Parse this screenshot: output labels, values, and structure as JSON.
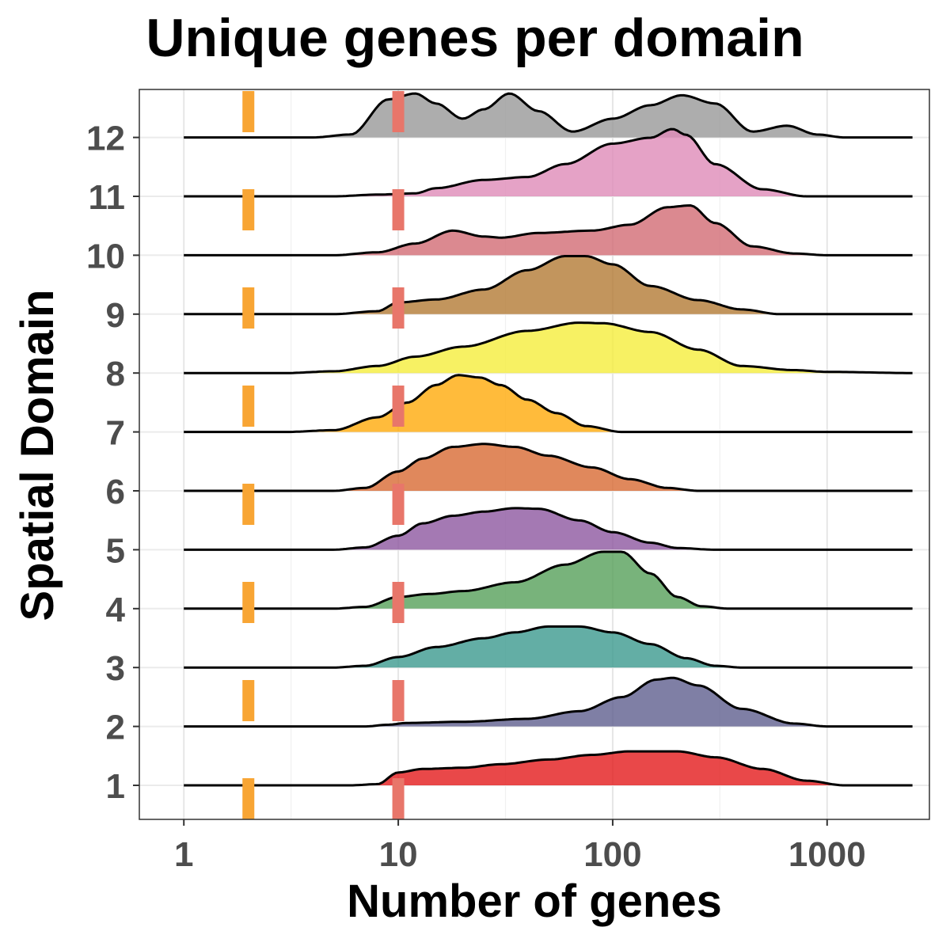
{
  "chart_data": {
    "type": "ridgeline",
    "title": "Unique genes per domain",
    "xlabel": "Number of genes",
    "ylabel": "Spatial Domain",
    "x_scale": "log10",
    "xlim": [
      0.62,
      3000
    ],
    "x_ticks": [
      1,
      10,
      100,
      1000
    ],
    "x_tick_labels": [
      "1",
      "10",
      "100",
      "1000"
    ],
    "grid": true,
    "reference_lines": [
      {
        "x": 2,
        "color": "#F8A534",
        "style": "dashed"
      },
      {
        "x": 10,
        "color": "#E8766A",
        "style": "dashed"
      }
    ],
    "series": [
      {
        "name": "1",
        "color": "#E41A1C",
        "density": [
          [
            1,
            0
          ],
          [
            6,
            0
          ],
          [
            8,
            0.02
          ],
          [
            10,
            0.22
          ],
          [
            13,
            0.28
          ],
          [
            20,
            0.3
          ],
          [
            30,
            0.36
          ],
          [
            50,
            0.44
          ],
          [
            80,
            0.52
          ],
          [
            120,
            0.58
          ],
          [
            200,
            0.58
          ],
          [
            300,
            0.48
          ],
          [
            500,
            0.28
          ],
          [
            800,
            0.08
          ],
          [
            1200,
            0
          ],
          [
            2500,
            0
          ]
        ]
      },
      {
        "name": "2",
        "color": "#5F5F8F",
        "density": [
          [
            1,
            0
          ],
          [
            7,
            0
          ],
          [
            9,
            0.03
          ],
          [
            11,
            0.06
          ],
          [
            20,
            0.08
          ],
          [
            40,
            0.13
          ],
          [
            70,
            0.26
          ],
          [
            110,
            0.5
          ],
          [
            160,
            0.8
          ],
          [
            190,
            0.83
          ],
          [
            250,
            0.7
          ],
          [
            400,
            0.3
          ],
          [
            700,
            0.05
          ],
          [
            1000,
            0
          ],
          [
            2500,
            0
          ]
        ]
      },
      {
        "name": "3",
        "color": "#3C9A8F",
        "density": [
          [
            1,
            0
          ],
          [
            5,
            0
          ],
          [
            7,
            0.03
          ],
          [
            10,
            0.18
          ],
          [
            15,
            0.35
          ],
          [
            25,
            0.5
          ],
          [
            35,
            0.6
          ],
          [
            50,
            0.7
          ],
          [
            70,
            0.7
          ],
          [
            100,
            0.6
          ],
          [
            150,
            0.4
          ],
          [
            220,
            0.16
          ],
          [
            300,
            0.03
          ],
          [
            400,
            0
          ],
          [
            2500,
            0
          ]
        ]
      },
      {
        "name": "4",
        "color": "#56A05A",
        "density": [
          [
            1,
            0
          ],
          [
            5,
            0
          ],
          [
            7,
            0.03
          ],
          [
            10,
            0.2
          ],
          [
            14,
            0.25
          ],
          [
            20,
            0.3
          ],
          [
            35,
            0.45
          ],
          [
            60,
            0.75
          ],
          [
            90,
            0.97
          ],
          [
            110,
            0.97
          ],
          [
            150,
            0.6
          ],
          [
            200,
            0.2
          ],
          [
            260,
            0.04
          ],
          [
            350,
            0
          ],
          [
            2500,
            0
          ]
        ]
      },
      {
        "name": "5",
        "color": "#8D57A0",
        "density": [
          [
            1,
            0
          ],
          [
            5,
            0
          ],
          [
            7,
            0.04
          ],
          [
            10,
            0.24
          ],
          [
            13,
            0.45
          ],
          [
            18,
            0.58
          ],
          [
            25,
            0.65
          ],
          [
            35,
            0.71
          ],
          [
            45,
            0.7
          ],
          [
            70,
            0.5
          ],
          [
            100,
            0.3
          ],
          [
            150,
            0.12
          ],
          [
            200,
            0.03
          ],
          [
            300,
            0
          ],
          [
            2500,
            0
          ]
        ]
      },
      {
        "name": "6",
        "color": "#D86A33",
        "density": [
          [
            1,
            0
          ],
          [
            5,
            0
          ],
          [
            7,
            0.05
          ],
          [
            10,
            0.33
          ],
          [
            13,
            0.55
          ],
          [
            18,
            0.75
          ],
          [
            25,
            0.8
          ],
          [
            35,
            0.75
          ],
          [
            50,
            0.6
          ],
          [
            80,
            0.4
          ],
          [
            120,
            0.2
          ],
          [
            180,
            0.05
          ],
          [
            250,
            0
          ],
          [
            2500,
            0
          ]
        ]
      },
      {
        "name": "7",
        "color": "#FFAA0A",
        "density": [
          [
            1,
            0
          ],
          [
            3,
            0
          ],
          [
            5,
            0.03
          ],
          [
            8,
            0.25
          ],
          [
            11,
            0.5
          ],
          [
            15,
            0.8
          ],
          [
            19,
            0.97
          ],
          [
            24,
            0.93
          ],
          [
            30,
            0.8
          ],
          [
            40,
            0.55
          ],
          [
            55,
            0.32
          ],
          [
            75,
            0.1
          ],
          [
            110,
            0
          ],
          [
            2500,
            0
          ]
        ]
      },
      {
        "name": "8",
        "color": "#F5EE3C",
        "density": [
          [
            1,
            0
          ],
          [
            3,
            0
          ],
          [
            5,
            0.03
          ],
          [
            8,
            0.12
          ],
          [
            12,
            0.28
          ],
          [
            20,
            0.45
          ],
          [
            40,
            0.72
          ],
          [
            70,
            0.86
          ],
          [
            90,
            0.85
          ],
          [
            150,
            0.7
          ],
          [
            250,
            0.4
          ],
          [
            400,
            0.12
          ],
          [
            700,
            0.05
          ],
          [
            1000,
            0.02
          ],
          [
            2500,
            0
          ]
        ]
      },
      {
        "name": "9",
        "color": "#B37A34",
        "density": [
          [
            1,
            0
          ],
          [
            5,
            0
          ],
          [
            8,
            0.05
          ],
          [
            10,
            0.2
          ],
          [
            15,
            0.25
          ],
          [
            25,
            0.42
          ],
          [
            40,
            0.75
          ],
          [
            60,
            0.99
          ],
          [
            75,
            0.99
          ],
          [
            100,
            0.85
          ],
          [
            150,
            0.48
          ],
          [
            250,
            0.24
          ],
          [
            400,
            0.08
          ],
          [
            600,
            0
          ],
          [
            2500,
            0
          ]
        ]
      },
      {
        "name": "10",
        "color": "#D26C74",
        "density": [
          [
            1,
            0
          ],
          [
            5,
            0
          ],
          [
            8,
            0.05
          ],
          [
            12,
            0.2
          ],
          [
            18,
            0.42
          ],
          [
            25,
            0.32
          ],
          [
            30,
            0.3
          ],
          [
            45,
            0.38
          ],
          [
            80,
            0.42
          ],
          [
            120,
            0.52
          ],
          [
            180,
            0.82
          ],
          [
            230,
            0.85
          ],
          [
            300,
            0.55
          ],
          [
            450,
            0.15
          ],
          [
            700,
            0.03
          ],
          [
            1000,
            0
          ],
          [
            2500,
            0
          ]
        ]
      },
      {
        "name": "11",
        "color": "#DE8BB8",
        "density": [
          [
            1,
            0
          ],
          [
            5,
            0
          ],
          [
            8,
            0.03
          ],
          [
            12,
            0.05
          ],
          [
            15,
            0.14
          ],
          [
            25,
            0.28
          ],
          [
            40,
            0.33
          ],
          [
            60,
            0.55
          ],
          [
            100,
            0.9
          ],
          [
            150,
            1.0
          ],
          [
            190,
            1.15
          ],
          [
            220,
            1.05
          ],
          [
            300,
            0.55
          ],
          [
            500,
            0.12
          ],
          [
            800,
            0
          ],
          [
            2500,
            0
          ]
        ]
      },
      {
        "name": "12",
        "color": "#999999",
        "density": [
          [
            1,
            0
          ],
          [
            4,
            0
          ],
          [
            6,
            0.05
          ],
          [
            9,
            0.65
          ],
          [
            12,
            0.75
          ],
          [
            15,
            0.58
          ],
          [
            20,
            0.32
          ],
          [
            25,
            0.48
          ],
          [
            33,
            0.75
          ],
          [
            45,
            0.45
          ],
          [
            65,
            0.1
          ],
          [
            100,
            0.32
          ],
          [
            150,
            0.55
          ],
          [
            210,
            0.72
          ],
          [
            300,
            0.58
          ],
          [
            450,
            0.1
          ],
          [
            650,
            0.2
          ],
          [
            900,
            0.05
          ],
          [
            1200,
            0
          ],
          [
            2500,
            0
          ]
        ]
      }
    ]
  }
}
